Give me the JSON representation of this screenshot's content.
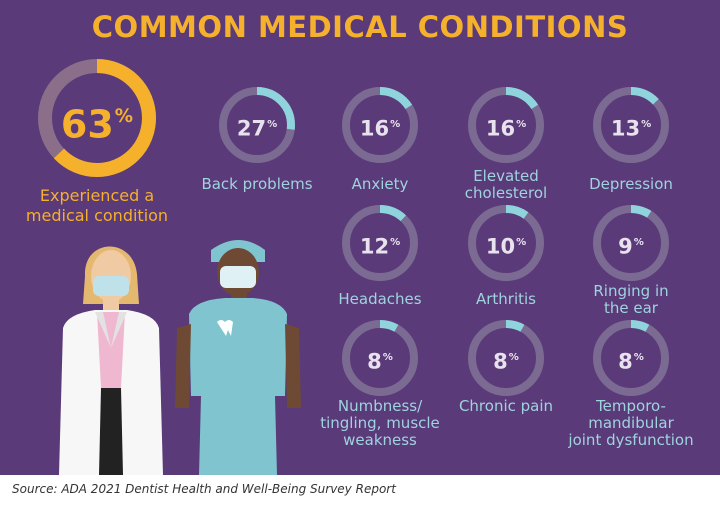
{
  "title": "COMMON MEDICAL CONDITIONS",
  "source": "Source: ADA 2021 Dentist Health and Well-Being Survey Report",
  "colors": {
    "background": "#5a3a78",
    "accent": "#f5b02c",
    "ring_track": "#7b6b93",
    "ring_fill": "#8fd3dc",
    "label": "#9fd3de"
  },
  "chart_data": {
    "type": "donut",
    "title": "COMMON MEDICAL CONDITIONS",
    "headline": {
      "value": 63,
      "label_lines": [
        "Experienced a",
        "medical condition"
      ]
    },
    "categories": [
      "Back problems",
      "Anxiety",
      "Elevated cholesterol",
      "Depression",
      "Headaches",
      "Arthritis",
      "Ringing in the ear",
      "Numbness/ tingling, muscle weakness",
      "Chronic pain",
      "Temporo-mandibular joint dysfunction"
    ],
    "values": [
      27,
      16,
      16,
      13,
      12,
      10,
      9,
      8,
      8,
      8
    ],
    "label_lines": [
      [
        "Back problems"
      ],
      [
        "Anxiety"
      ],
      [
        "Elevated",
        "cholesterol"
      ],
      [
        "Depression"
      ],
      [
        "Headaches"
      ],
      [
        "Arthritis"
      ],
      [
        "Ringing in",
        "the ear"
      ],
      [
        "Numbness/",
        "tingling, muscle",
        "weakness"
      ],
      [
        "Chronic pain"
      ],
      [
        "Temporo-",
        "mandibular",
        "joint dysfunction"
      ]
    ],
    "unit": "%"
  }
}
